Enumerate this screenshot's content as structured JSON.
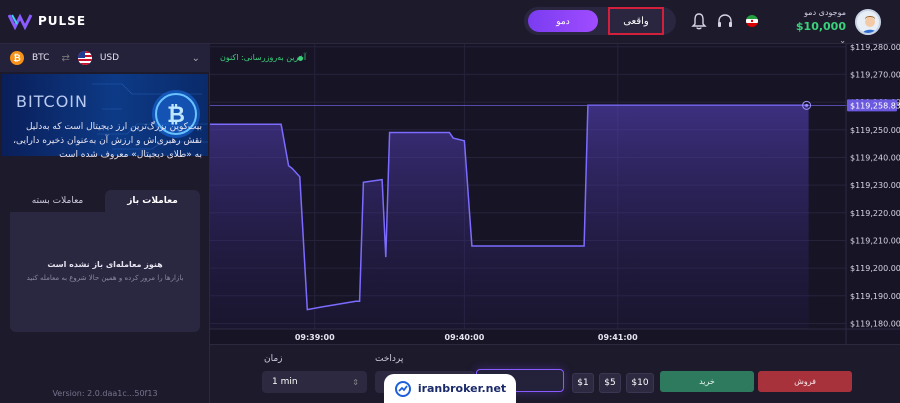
{
  "header": {
    "logo_text": "PULSE",
    "mode_demo": "دمو",
    "mode_real": "واقعی",
    "balance_label": "موجودی دمو",
    "balance_value": "$10,000"
  },
  "sidebar": {
    "base_currency": "BTC",
    "quote_currency": "USD",
    "banner_title": "BITCOIN",
    "description": "بیت‌کوین بزرگ‌ترین ارز دیجیتال است که به‌دلیل نقش رهبری‌اش و ارزش آن به‌عنوان ذخیره دارایی، به «طلای دیجیتال» معروف شده است",
    "tabs": [
      {
        "label": "معاملات بسته",
        "active": false
      },
      {
        "label": "معاملات باز",
        "active": true
      }
    ],
    "empty_title": "هنوز معامله‌ای باز نشده است",
    "empty_subtitle": "بازارها را مرور کرده و همین حالا شروع به معامله کنید",
    "version": "Version: 2.0.daa1c...50f13"
  },
  "chart": {
    "live_label": "آخرین به‌روزرسانی: اکنون"
  },
  "chart_data": {
    "type": "line",
    "series": [
      {
        "values": [
          [
            0,
            119252
          ],
          [
            19,
            119252
          ],
          [
            21,
            119237
          ],
          [
            22,
            119236
          ],
          [
            24,
            119233
          ],
          [
            26,
            119185
          ],
          [
            30,
            119186
          ],
          [
            39,
            119188
          ],
          [
            40,
            119188
          ],
          [
            41,
            119231
          ],
          [
            46,
            119232
          ],
          [
            47,
            119204
          ],
          [
            48,
            119249
          ],
          [
            64,
            119249
          ],
          [
            65,
            119247
          ],
          [
            68,
            119246
          ],
          [
            70,
            119208
          ],
          [
            100,
            119208
          ],
          [
            101,
            119258.83
          ],
          [
            160,
            119258.83
          ]
        ]
      }
    ],
    "x_ticks": [
      "09:39:00",
      "09:40:00",
      "09:41:00"
    ],
    "x_tick_positions": [
      28,
      68,
      109
    ],
    "y_ticks": [
      "$119,280.00",
      "$119,270.00",
      "$119,260.00",
      "$119,250.00",
      "$119,240.00",
      "$119,230.00",
      "$119,220.00",
      "$119,210.00",
      "$119,200.00",
      "$119,190.00",
      "$119,180.00"
    ],
    "current_price": "$119,258.83",
    "xlim": [
      0,
      170
    ],
    "ylim": [
      119178,
      119281
    ],
    "line_color": "#7b6cff",
    "grid": true
  },
  "order": {
    "time_label": "زمان",
    "time_value": "1 min",
    "payout_label": "پرداخت",
    "presets": [
      "$1",
      "$5",
      "$10"
    ],
    "buy_label": "خرید",
    "sell_label": "فروش"
  },
  "watermark": {
    "text": "iranbroker.net"
  },
  "colors": {
    "accent": "#8a5cff",
    "positive": "#3ad27a",
    "buy": "#2d7a5e",
    "sell": "#a8323c"
  }
}
